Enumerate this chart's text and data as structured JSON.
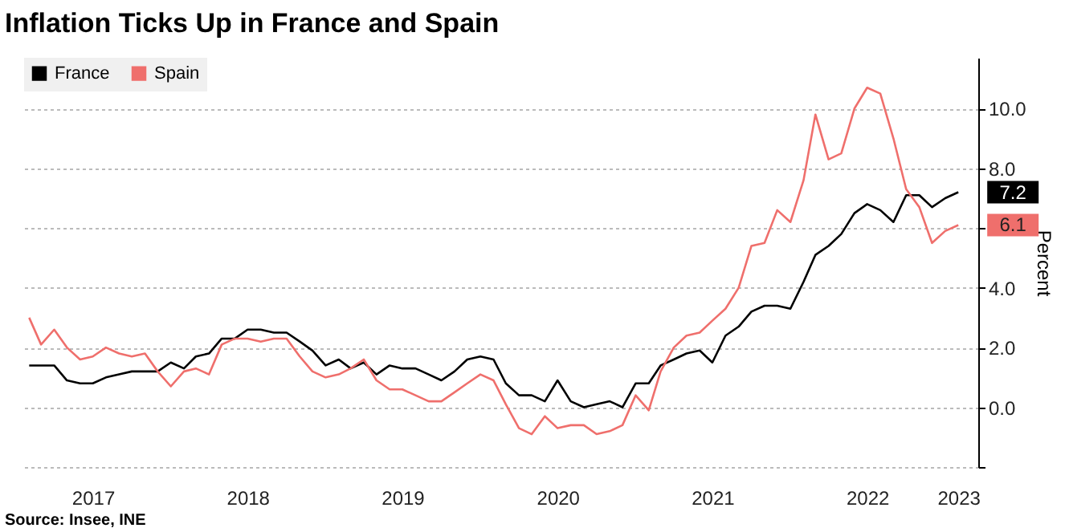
{
  "chart_data": {
    "type": "line",
    "title": "Inflation Ticks Up in France and Spain",
    "ylabel": "Percent",
    "x": [
      "2017-02",
      "2017-03",
      "2017-04",
      "2017-05",
      "2017-06",
      "2017-07",
      "2017-08",
      "2017-09",
      "2017-10",
      "2017-11",
      "2017-12",
      "2018-01",
      "2018-02",
      "2018-03",
      "2018-04",
      "2018-05",
      "2018-06",
      "2018-07",
      "2018-08",
      "2018-09",
      "2018-10",
      "2018-11",
      "2018-12",
      "2019-01",
      "2019-02",
      "2019-03",
      "2019-04",
      "2019-05",
      "2019-06",
      "2019-07",
      "2019-08",
      "2019-09",
      "2019-10",
      "2019-11",
      "2019-12",
      "2020-01",
      "2020-02",
      "2020-03",
      "2020-04",
      "2020-05",
      "2020-06",
      "2020-07",
      "2020-08",
      "2020-09",
      "2020-10",
      "2020-11",
      "2020-12",
      "2021-01",
      "2021-02",
      "2021-03",
      "2021-04",
      "2021-05",
      "2021-06",
      "2021-07",
      "2021-08",
      "2021-09",
      "2021-10",
      "2021-11",
      "2021-12",
      "2022-01",
      "2022-02",
      "2022-03",
      "2022-04",
      "2022-05",
      "2022-06",
      "2022-07",
      "2022-08",
      "2022-09",
      "2022-10",
      "2022-11",
      "2022-12",
      "2023-01",
      "2023-02"
    ],
    "series": [
      {
        "name": "France",
        "color": "#000000",
        "values": [
          1.4,
          1.4,
          1.4,
          0.9,
          0.8,
          0.8,
          1.0,
          1.1,
          1.2,
          1.2,
          1.2,
          1.5,
          1.3,
          1.7,
          1.8,
          2.3,
          2.3,
          2.6,
          2.6,
          2.5,
          2.5,
          2.2,
          1.9,
          1.4,
          1.6,
          1.3,
          1.5,
          1.1,
          1.4,
          1.3,
          1.3,
          1.1,
          0.9,
          1.2,
          1.6,
          1.7,
          1.6,
          0.8,
          0.4,
          0.4,
          0.2,
          0.9,
          0.2,
          0.0,
          0.1,
          0.2,
          0.0,
          0.8,
          0.8,
          1.4,
          1.6,
          1.8,
          1.9,
          1.5,
          2.4,
          2.7,
          3.2,
          3.4,
          3.4,
          3.3,
          4.2,
          5.1,
          5.4,
          5.8,
          6.5,
          6.8,
          6.6,
          6.2,
          7.1,
          7.1,
          6.7,
          7.0,
          7.2
        ]
      },
      {
        "name": "Spain",
        "color": "#ef6f6c",
        "values": [
          3.0,
          2.1,
          2.6,
          2.0,
          1.6,
          1.7,
          2.0,
          1.8,
          1.7,
          1.8,
          1.2,
          0.7,
          1.2,
          1.3,
          1.1,
          2.1,
          2.3,
          2.3,
          2.2,
          2.3,
          2.3,
          1.7,
          1.2,
          1.0,
          1.1,
          1.3,
          1.6,
          0.9,
          0.6,
          0.6,
          0.4,
          0.2,
          0.2,
          0.5,
          0.8,
          1.1,
          0.9,
          0.1,
          -0.7,
          -0.9,
          -0.3,
          -0.7,
          -0.6,
          -0.6,
          -0.9,
          -0.8,
          -0.6,
          0.4,
          -0.1,
          1.2,
          2.0,
          2.4,
          2.5,
          2.9,
          3.3,
          4.0,
          5.4,
          5.5,
          6.6,
          6.2,
          7.6,
          9.8,
          8.3,
          8.5,
          10.0,
          10.7,
          10.5,
          9.0,
          7.3,
          6.7,
          5.5,
          5.9,
          6.1
        ]
      }
    ],
    "xlim": [
      "2017-01-20",
      "2023-03-20"
    ],
    "xticks": [
      {
        "value": "2017-07-01",
        "label": "2017"
      },
      {
        "value": "2018-07-01",
        "label": "2018"
      },
      {
        "value": "2019-07-01",
        "label": "2019"
      },
      {
        "value": "2020-07-01",
        "label": "2020"
      },
      {
        "value": "2021-07-01",
        "label": "2021"
      },
      {
        "value": "2022-07-01",
        "label": "2022"
      },
      {
        "value": "2023-02-01",
        "label": "2023"
      }
    ],
    "ylim": [
      -2,
      11.7
    ],
    "yticks": [
      {
        "value": -2,
        "label": null
      },
      {
        "value": 0,
        "label": "0.0"
      },
      {
        "value": 2,
        "label": "2.0"
      },
      {
        "value": 4,
        "label": "4.0"
      },
      {
        "value": 6,
        "label": null
      },
      {
        "value": 8,
        "label": "8.0"
      },
      {
        "value": 10,
        "label": "10.0"
      }
    ],
    "grid": "y",
    "legend": "top left",
    "annotations": [
      {
        "text": "7.2",
        "x": "2023-02",
        "y": 7.2
      },
      {
        "text": "6.1",
        "x": "2023-02",
        "y": 6.1
      },
      "Source: Insee, INE"
    ]
  }
}
